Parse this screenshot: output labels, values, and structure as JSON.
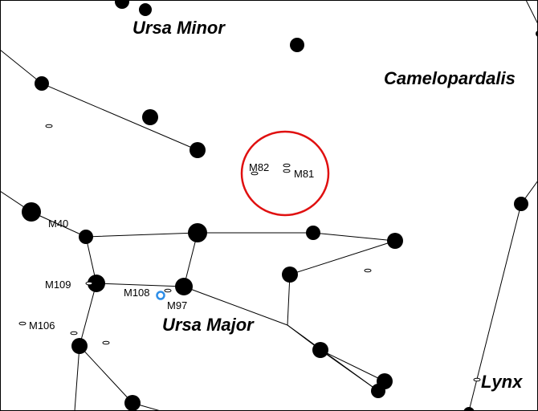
{
  "constellations": [
    "Ursa Minor",
    "Camelopardalis",
    "Ursa Major",
    "Lynx"
  ],
  "objects": [
    "M82",
    "M81",
    "M40",
    "M109",
    "M108",
    "M97",
    "M106"
  ]
}
